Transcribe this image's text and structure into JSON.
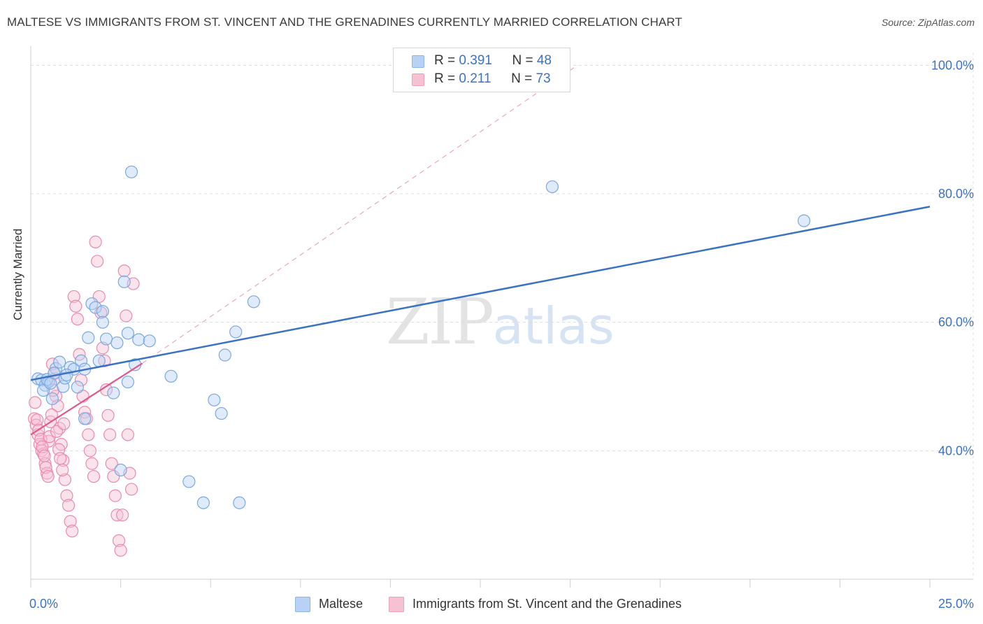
{
  "title": "MALTESE VS IMMIGRANTS FROM ST. VINCENT AND THE GRENADINES CURRENTLY MARRIED CORRELATION CHART",
  "source": "Source: ZipAtlas.com",
  "watermark": {
    "zip": "ZIP",
    "atlas": "atlas"
  },
  "colors": {
    "blue": "#3a72c4",
    "blue_fill": "#b7d2f5",
    "pink": "#e0578a",
    "pink_fill": "#f7c1d4",
    "grid": "#dddddd"
  },
  "legend": {
    "rows": [
      {
        "r_label": "R = ",
        "r_value": "0.391",
        "n_label": "N = ",
        "n_value": "48"
      },
      {
        "r_label": "R = ",
        "r_value": "0.211",
        "n_label": "N = ",
        "n_value": "73"
      }
    ]
  },
  "bottom_legend": {
    "series1": "Maltese",
    "series2": "Immigrants from St. Vincent and the Grenadines"
  },
  "chart_data": {
    "type": "scatter",
    "title": "MALTESE VS IMMIGRANTS FROM ST. VINCENT AND THE GRENADINES CURRENTLY MARRIED CORRELATION CHART",
    "xlabel": "",
    "ylabel": "Currently Married",
    "xlim": [
      0,
      25
    ],
    "ylim": [
      20,
      102
    ],
    "x_tick_labels": [
      "0.0%",
      "25.0%"
    ],
    "y_ticks": [
      40,
      60,
      80,
      100
    ],
    "y_tick_labels": [
      "40.0%",
      "60.0%",
      "80.0%",
      "100.0%"
    ],
    "grid": true,
    "series": [
      {
        "name": "Maltese",
        "r": 0.391,
        "n": 48,
        "trend": {
          "x": [
            0,
            25
          ],
          "y": [
            51.0,
            78.0
          ],
          "style": "solid"
        },
        "points": [
          [
            0.2,
            51.2
          ],
          [
            0.3,
            51.0
          ],
          [
            0.4,
            50.2
          ],
          [
            0.5,
            50.8
          ],
          [
            0.6,
            48.1
          ],
          [
            0.7,
            52.8
          ],
          [
            0.8,
            53.8
          ],
          [
            0.9,
            50.0
          ],
          [
            0.95,
            51.3
          ],
          [
            1.1,
            53.0
          ],
          [
            1.2,
            52.7
          ],
          [
            1.3,
            49.9
          ],
          [
            1.4,
            54.0
          ],
          [
            1.5,
            52.7
          ],
          [
            1.5,
            45.0
          ],
          [
            1.6,
            57.6
          ],
          [
            1.7,
            62.9
          ],
          [
            1.8,
            62.3
          ],
          [
            1.9,
            54.0
          ],
          [
            2.0,
            61.7
          ],
          [
            2.0,
            60.0
          ],
          [
            2.1,
            57.4
          ],
          [
            2.3,
            49.0
          ],
          [
            2.4,
            56.8
          ],
          [
            2.5,
            37.0
          ],
          [
            2.6,
            66.3
          ],
          [
            2.7,
            50.7
          ],
          [
            2.7,
            58.3
          ],
          [
            2.8,
            83.4
          ],
          [
            2.9,
            53.4
          ],
          [
            3.0,
            57.3
          ],
          [
            3.3,
            57.1
          ],
          [
            3.9,
            51.6
          ],
          [
            4.4,
            35.2
          ],
          [
            4.8,
            31.9
          ],
          [
            5.1,
            47.9
          ],
          [
            5.3,
            45.8
          ],
          [
            5.4,
            54.9
          ],
          [
            5.7,
            58.5
          ],
          [
            5.8,
            31.9
          ],
          [
            6.2,
            63.2
          ],
          [
            14.5,
            81.1
          ],
          [
            21.5,
            75.8
          ],
          [
            0.35,
            49.4
          ],
          [
            0.45,
            51.1
          ],
          [
            0.55,
            50.5
          ],
          [
            1.0,
            51.8
          ],
          [
            0.65,
            52.1
          ]
        ]
      },
      {
        "name": "Immigrants from St. Vincent and the Grenadines",
        "r": 0.211,
        "n": 73,
        "trend": {
          "x": [
            0,
            3.1
          ],
          "y": [
            42.5,
            53.6
          ],
          "style": "solid",
          "extension": {
            "x": [
              3.1,
              15.2
            ],
            "y": [
              53.6,
              100.0
            ],
            "style": "dashed"
          }
        },
        "points": [
          [
            0.1,
            45.0
          ],
          [
            0.15,
            44.0
          ],
          [
            0.2,
            42.5
          ],
          [
            0.25,
            41.0
          ],
          [
            0.3,
            40.0
          ],
          [
            0.35,
            39.5
          ],
          [
            0.4,
            38.0
          ],
          [
            0.45,
            36.5
          ],
          [
            0.5,
            41.5
          ],
          [
            0.55,
            44.5
          ],
          [
            0.6,
            53.5
          ],
          [
            0.65,
            52.0
          ],
          [
            0.7,
            48.5
          ],
          [
            0.75,
            47.0
          ],
          [
            0.8,
            43.5
          ],
          [
            0.85,
            41.0
          ],
          [
            0.9,
            38.5
          ],
          [
            0.95,
            35.5
          ],
          [
            1.0,
            33.0
          ],
          [
            1.05,
            31.5
          ],
          [
            1.1,
            29.0
          ],
          [
            1.15,
            27.5
          ],
          [
            1.2,
            64.0
          ],
          [
            1.25,
            62.5
          ],
          [
            1.3,
            60.5
          ],
          [
            1.35,
            55.0
          ],
          [
            1.4,
            51.0
          ],
          [
            1.45,
            48.5
          ],
          [
            1.5,
            46.0
          ],
          [
            1.55,
            45.0
          ],
          [
            1.6,
            42.5
          ],
          [
            1.65,
            40.0
          ],
          [
            1.7,
            38.0
          ],
          [
            1.75,
            36.0
          ],
          [
            1.8,
            72.5
          ],
          [
            1.85,
            69.5
          ],
          [
            1.9,
            64.0
          ],
          [
            1.95,
            61.5
          ],
          [
            2.0,
            56.0
          ],
          [
            2.05,
            54.0
          ],
          [
            2.1,
            49.5
          ],
          [
            2.15,
            45.5
          ],
          [
            2.2,
            42.5
          ],
          [
            2.25,
            38.0
          ],
          [
            2.3,
            36.0
          ],
          [
            2.35,
            33.0
          ],
          [
            2.4,
            30.0
          ],
          [
            2.45,
            26.0
          ],
          [
            2.5,
            24.5
          ],
          [
            2.55,
            30.0
          ],
          [
            2.6,
            68.0
          ],
          [
            2.65,
            61.0
          ],
          [
            2.7,
            42.5
          ],
          [
            2.75,
            36.5
          ],
          [
            2.8,
            34.0
          ],
          [
            2.85,
            66.0
          ],
          [
            0.12,
            47.5
          ],
          [
            0.18,
            44.8
          ],
          [
            0.22,
            43.2
          ],
          [
            0.28,
            41.8
          ],
          [
            0.32,
            40.6
          ],
          [
            0.38,
            39.2
          ],
          [
            0.42,
            37.4
          ],
          [
            0.48,
            36.0
          ],
          [
            0.52,
            42.2
          ],
          [
            0.58,
            45.6
          ],
          [
            0.62,
            49.4
          ],
          [
            0.68,
            51.2
          ],
          [
            0.72,
            43.0
          ],
          [
            0.78,
            40.2
          ],
          [
            0.82,
            38.8
          ],
          [
            0.88,
            37.0
          ],
          [
            0.92,
            44.2
          ]
        ]
      }
    ]
  }
}
